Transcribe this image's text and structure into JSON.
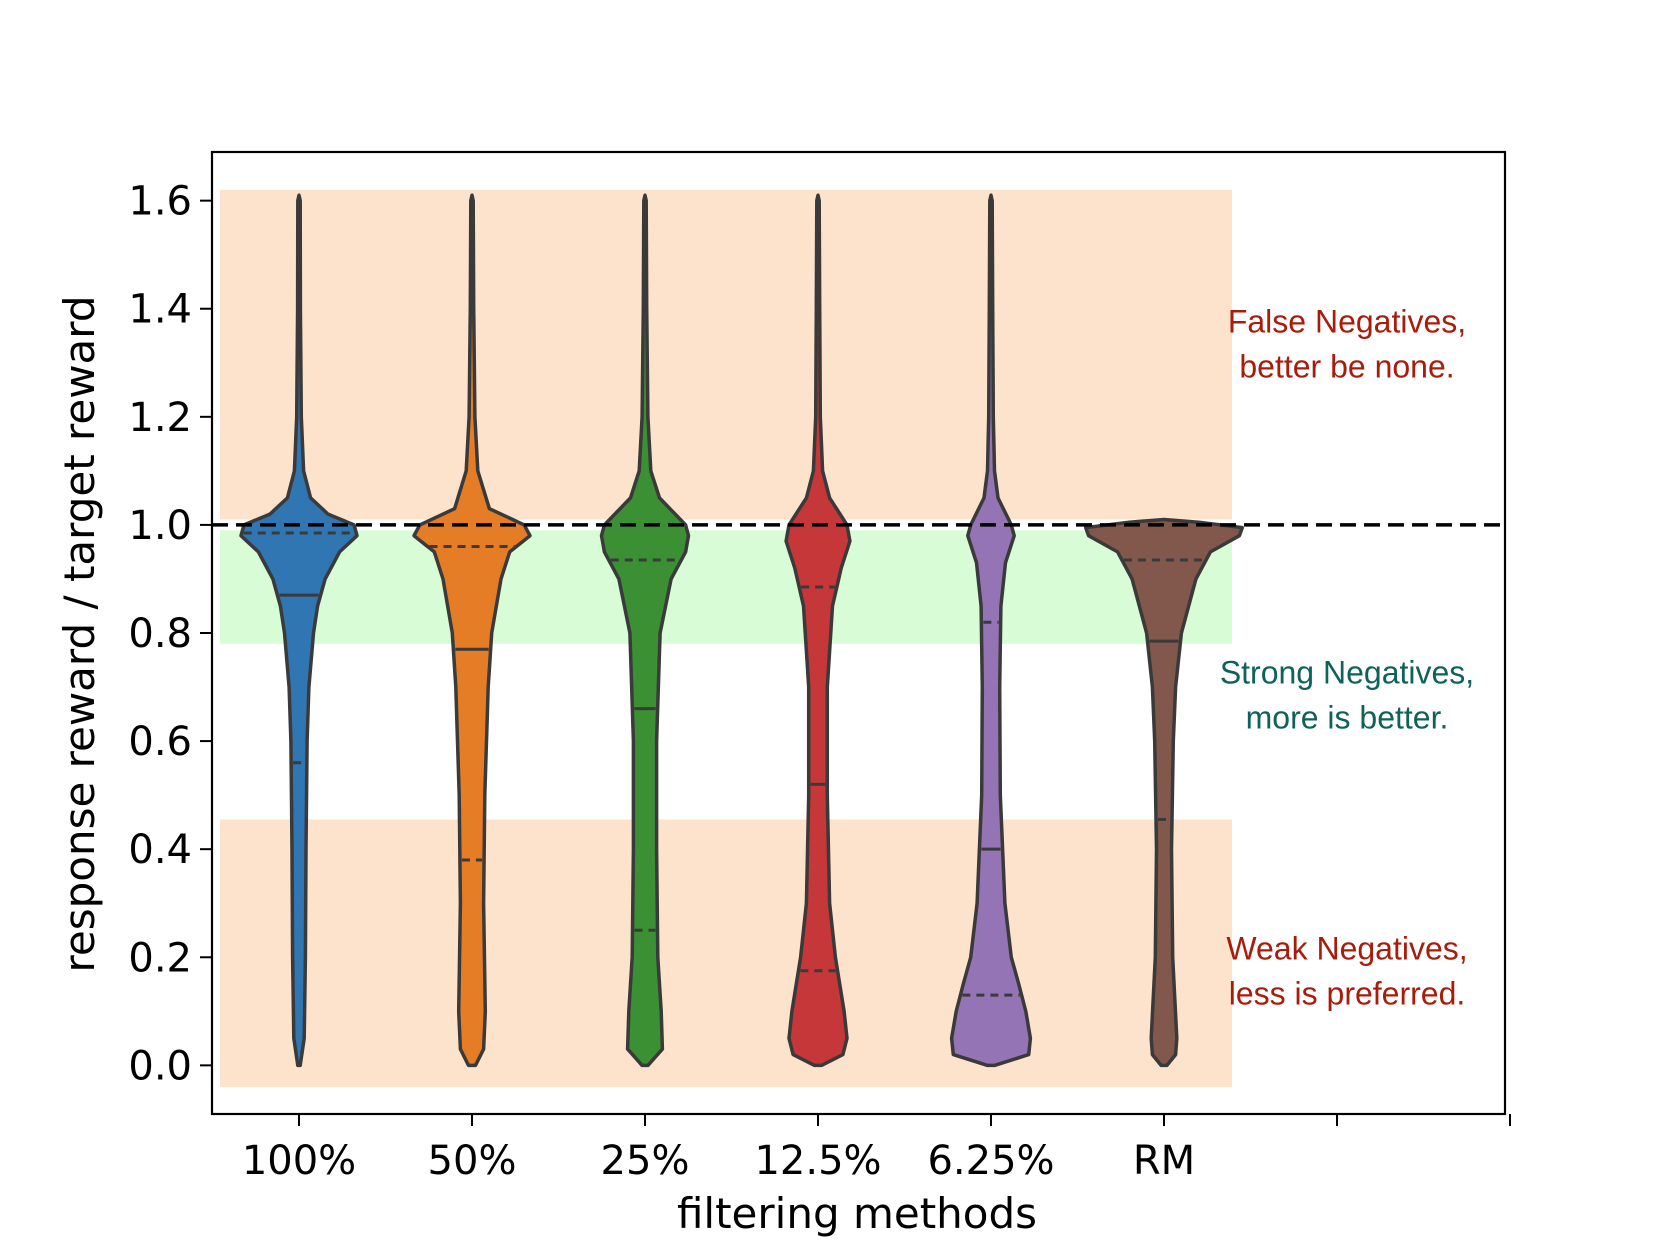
{
  "chart_data": {
    "type": "violin",
    "xlabel": "filtering methods",
    "ylabel": "response reward / target reward",
    "categories": [
      "100%",
      "50%",
      "25%",
      "12.5%",
      "6.25%",
      "RM"
    ],
    "extra_x_slots": 2,
    "ylim": [
      -0.09,
      1.69
    ],
    "yticks": [
      0.0,
      0.2,
      0.4,
      0.6,
      0.8,
      1.0,
      1.2,
      1.4,
      1.6
    ],
    "ytick_labels": [
      "0.0",
      "0.2",
      "0.4",
      "0.6",
      "0.8",
      "1.0",
      "1.2",
      "1.4",
      "1.6"
    ],
    "reference_line": {
      "y": 1.0,
      "style": "dashed",
      "color": "#000000"
    },
    "bands": [
      {
        "name": "false-negatives",
        "y": [
          1.01,
          1.62
        ],
        "color": "#fde3cc"
      },
      {
        "name": "strong-negatives",
        "y": [
          0.78,
          0.99
        ],
        "color": "#d8fcd6"
      },
      {
        "name": "weak-negatives",
        "y": [
          -0.04,
          0.455
        ],
        "color": "#fde3cc"
      }
    ],
    "annotations": [
      {
        "lines": [
          "False Negatives,",
          "better be none."
        ],
        "y_center": 1.335,
        "color": "#a81c0c"
      },
      {
        "lines": [
          "Strong Negatives,",
          "more is better."
        ],
        "y_center": 0.685,
        "color": "#0e625a"
      },
      {
        "lines": [
          "Weak Negatives,",
          "less is preferred."
        ],
        "y_center": 0.175,
        "color": "#a81c0c"
      }
    ],
    "series": [
      {
        "category": "100%",
        "color": "#2f76b3",
        "quartiles": [
          0.56,
          0.87,
          0.985
        ],
        "profile": [
          [
            0.0,
            0.02
          ],
          [
            0.05,
            0.09
          ],
          [
            0.2,
            0.11
          ],
          [
            0.4,
            0.12
          ],
          [
            0.6,
            0.14
          ],
          [
            0.7,
            0.17
          ],
          [
            0.8,
            0.25
          ],
          [
            0.85,
            0.32
          ],
          [
            0.9,
            0.45
          ],
          [
            0.95,
            0.7
          ],
          [
            0.98,
            1.0
          ],
          [
            1.0,
            0.95
          ],
          [
            1.02,
            0.5
          ],
          [
            1.05,
            0.2
          ],
          [
            1.1,
            0.08
          ],
          [
            1.2,
            0.04
          ],
          [
            1.4,
            0.025
          ],
          [
            1.6,
            0.02
          ],
          [
            1.61,
            0.0
          ]
        ]
      },
      {
        "category": "50%",
        "color": "#e57d27",
        "quartiles": [
          0.38,
          0.77,
          0.96
        ],
        "profile": [
          [
            0.0,
            0.06
          ],
          [
            0.03,
            0.2
          ],
          [
            0.1,
            0.23
          ],
          [
            0.3,
            0.2
          ],
          [
            0.5,
            0.22
          ],
          [
            0.7,
            0.28
          ],
          [
            0.8,
            0.34
          ],
          [
            0.9,
            0.5
          ],
          [
            0.95,
            0.65
          ],
          [
            0.98,
            1.0
          ],
          [
            1.0,
            0.9
          ],
          [
            1.03,
            0.3
          ],
          [
            1.1,
            0.1
          ],
          [
            1.2,
            0.05
          ],
          [
            1.4,
            0.03
          ],
          [
            1.6,
            0.02
          ],
          [
            1.61,
            0.0
          ]
        ]
      },
      {
        "category": "25%",
        "color": "#3a9033",
        "quartiles": [
          0.25,
          0.66,
          0.935
        ],
        "profile": [
          [
            0.0,
            0.05
          ],
          [
            0.03,
            0.3
          ],
          [
            0.1,
            0.28
          ],
          [
            0.2,
            0.22
          ],
          [
            0.4,
            0.2
          ],
          [
            0.6,
            0.2
          ],
          [
            0.8,
            0.26
          ],
          [
            0.9,
            0.45
          ],
          [
            0.95,
            0.7
          ],
          [
            0.98,
            0.75
          ],
          [
            1.0,
            0.7
          ],
          [
            1.05,
            0.25
          ],
          [
            1.1,
            0.1
          ],
          [
            1.2,
            0.05
          ],
          [
            1.4,
            0.03
          ],
          [
            1.6,
            0.02
          ],
          [
            1.61,
            0.0
          ]
        ]
      },
      {
        "category": "12.5%",
        "color": "#c63739",
        "quartiles": [
          0.175,
          0.52,
          0.885
        ],
        "profile": [
          [
            0.0,
            0.06
          ],
          [
            0.02,
            0.43
          ],
          [
            0.05,
            0.5
          ],
          [
            0.1,
            0.45
          ],
          [
            0.2,
            0.3
          ],
          [
            0.3,
            0.2
          ],
          [
            0.5,
            0.16
          ],
          [
            0.7,
            0.16
          ],
          [
            0.85,
            0.25
          ],
          [
            0.92,
            0.4
          ],
          [
            0.97,
            0.55
          ],
          [
            1.0,
            0.5
          ],
          [
            1.05,
            0.2
          ],
          [
            1.1,
            0.08
          ],
          [
            1.2,
            0.04
          ],
          [
            1.4,
            0.03
          ],
          [
            1.6,
            0.02
          ],
          [
            1.61,
            0.0
          ]
        ]
      },
      {
        "category": "6.25%",
        "color": "#9474b4",
        "quartiles": [
          0.13,
          0.4,
          0.82
        ],
        "profile": [
          [
            0.0,
            0.06
          ],
          [
            0.02,
            0.65
          ],
          [
            0.05,
            0.68
          ],
          [
            0.1,
            0.6
          ],
          [
            0.15,
            0.48
          ],
          [
            0.2,
            0.35
          ],
          [
            0.3,
            0.24
          ],
          [
            0.5,
            0.16
          ],
          [
            0.7,
            0.15
          ],
          [
            0.85,
            0.17
          ],
          [
            0.93,
            0.25
          ],
          [
            0.98,
            0.4
          ],
          [
            1.0,
            0.35
          ],
          [
            1.05,
            0.12
          ],
          [
            1.1,
            0.06
          ],
          [
            1.2,
            0.04
          ],
          [
            1.4,
            0.03
          ],
          [
            1.6,
            0.02
          ],
          [
            1.61,
            0.0
          ]
        ]
      },
      {
        "category": "RM",
        "color": "#82584c",
        "quartiles": [
          0.455,
          0.785,
          0.935
        ],
        "profile": [
          [
            0.0,
            0.05
          ],
          [
            0.02,
            0.2
          ],
          [
            0.05,
            0.22
          ],
          [
            0.2,
            0.15
          ],
          [
            0.4,
            0.13
          ],
          [
            0.6,
            0.16
          ],
          [
            0.7,
            0.2
          ],
          [
            0.8,
            0.3
          ],
          [
            0.9,
            0.55
          ],
          [
            0.95,
            0.8
          ],
          [
            0.98,
            1.3
          ],
          [
            0.995,
            1.35
          ],
          [
            1.005,
            0.6
          ],
          [
            1.01,
            0.0
          ]
        ]
      }
    ]
  }
}
